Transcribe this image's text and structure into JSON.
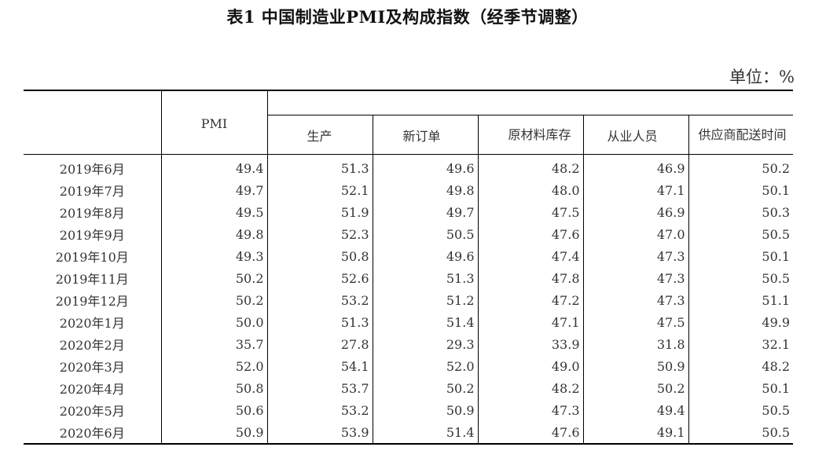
{
  "title": "表1 中国制造业PMI及构成指数（经季节调整）",
  "unit": "单位：%",
  "headers": {
    "pmi": "PMI",
    "production": "生产",
    "new_orders": "新订单",
    "raw_materials": "原材料库存",
    "employment": "从业人员",
    "delivery": "供应商配送时间"
  },
  "rows": [
    {
      "period": "2019年6月",
      "pmi": "49.4",
      "production": "51.3",
      "new_orders": "49.6",
      "raw_materials": "48.2",
      "employment": "46.9",
      "delivery": "50.2"
    },
    {
      "period": "2019年7月",
      "pmi": "49.7",
      "production": "52.1",
      "new_orders": "49.8",
      "raw_materials": "48.0",
      "employment": "47.1",
      "delivery": "50.1"
    },
    {
      "period": "2019年8月",
      "pmi": "49.5",
      "production": "51.9",
      "new_orders": "49.7",
      "raw_materials": "47.5",
      "employment": "46.9",
      "delivery": "50.3"
    },
    {
      "period": "2019年9月",
      "pmi": "49.8",
      "production": "52.3",
      "new_orders": "50.5",
      "raw_materials": "47.6",
      "employment": "47.0",
      "delivery": "50.5"
    },
    {
      "period": "2019年10月",
      "pmi": "49.3",
      "production": "50.8",
      "new_orders": "49.6",
      "raw_materials": "47.4",
      "employment": "47.3",
      "delivery": "50.1"
    },
    {
      "period": "2019年11月",
      "pmi": "50.2",
      "production": "52.6",
      "new_orders": "51.3",
      "raw_materials": "47.8",
      "employment": "47.3",
      "delivery": "50.5"
    },
    {
      "period": "2019年12月",
      "pmi": "50.2",
      "production": "53.2",
      "new_orders": "51.2",
      "raw_materials": "47.2",
      "employment": "47.3",
      "delivery": "51.1"
    },
    {
      "period": "2020年1月",
      "pmi": "50.0",
      "production": "51.3",
      "new_orders": "51.4",
      "raw_materials": "47.1",
      "employment": "47.5",
      "delivery": "49.9"
    },
    {
      "period": "2020年2月",
      "pmi": "35.7",
      "production": "27.8",
      "new_orders": "29.3",
      "raw_materials": "33.9",
      "employment": "31.8",
      "delivery": "32.1"
    },
    {
      "period": "2020年3月",
      "pmi": "52.0",
      "production": "54.1",
      "new_orders": "52.0",
      "raw_materials": "49.0",
      "employment": "50.9",
      "delivery": "48.2"
    },
    {
      "period": "2020年4月",
      "pmi": "50.8",
      "production": "53.7",
      "new_orders": "50.2",
      "raw_materials": "48.2",
      "employment": "50.2",
      "delivery": "50.1"
    },
    {
      "period": "2020年5月",
      "pmi": "50.6",
      "production": "53.2",
      "new_orders": "50.9",
      "raw_materials": "47.3",
      "employment": "49.4",
      "delivery": "50.5"
    },
    {
      "period": "2020年6月",
      "pmi": "50.9",
      "production": "53.9",
      "new_orders": "51.4",
      "raw_materials": "47.6",
      "employment": "49.1",
      "delivery": "50.5"
    }
  ]
}
